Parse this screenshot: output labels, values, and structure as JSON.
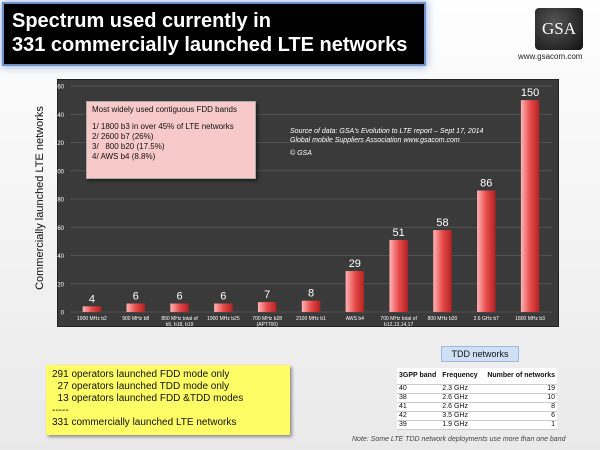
{
  "header": {
    "title_line1": "Spectrum used currently in",
    "title_line2": "331 commercially launched LTE networks",
    "logo_text": "GSA",
    "website": "www.gsacom.com"
  },
  "colors": {
    "bar": "#e84c4c",
    "panel": "#3a3a3a",
    "title_bg": "#000000",
    "note_bg": "#fffd66",
    "info_bg": "#f7c9c9"
  },
  "infobox": {
    "heading": "Most widely used contiguous FDD bands",
    "items": [
      "1/ 1800 b3 in over 45% of LTE networks",
      "2/ 2600 b7 (26%)",
      "3/   800 b20 (17.5%)",
      "4/ AWS b4 (8.8%)"
    ]
  },
  "source": {
    "line1": "Source of data: GSA's Evolution to LTE report – Sept 17, 2014",
    "line2": "Global mobile Suppliers Association www.gsacom.com",
    "copyright": "© GSA"
  },
  "chart_data": {
    "type": "bar",
    "categories": [
      "1900 MHz b2",
      "900 MHz b8",
      "850 MHz total of b5, b18, b19",
      "1900 MHz b25",
      "700 MHz b28 (APT700)",
      "2100 MHz b1",
      "AWS b4",
      "700 MHz total of b12,13,14,17",
      "800 MHz b20",
      "2.6 GHz b7",
      "1800 MHz b3"
    ],
    "values": [
      4,
      6,
      6,
      6,
      7,
      8,
      29,
      51,
      58,
      86,
      150
    ],
    "ylabel": "Commercially launched LTE networks",
    "ylim": [
      0,
      160
    ],
    "yticks": [
      0,
      20,
      40,
      60,
      80,
      100,
      120,
      140,
      160
    ],
    "grid": true
  },
  "summary": {
    "lines": [
      "291 operators launched FDD mode only",
      "  27 operators launched TDD mode only",
      "  13 operators launched FDD &TDD modes",
      "-----",
      "331 commercially launched LTE networks"
    ]
  },
  "tdd": {
    "title": "TDD networks",
    "headers": [
      "3GPP band",
      "Frequency",
      "Number of networks"
    ],
    "rows": [
      [
        "40",
        "2.3 GHz",
        "19"
      ],
      [
        "38",
        "2.6 GHz",
        "10"
      ],
      [
        "41",
        "2.6 GHz",
        "8"
      ],
      [
        "42",
        "3.5 GHz",
        "6"
      ],
      [
        "39",
        "1.9 GHz",
        "1"
      ]
    ],
    "note": "Note: Some LTE TDD network deployments use more than one band"
  }
}
